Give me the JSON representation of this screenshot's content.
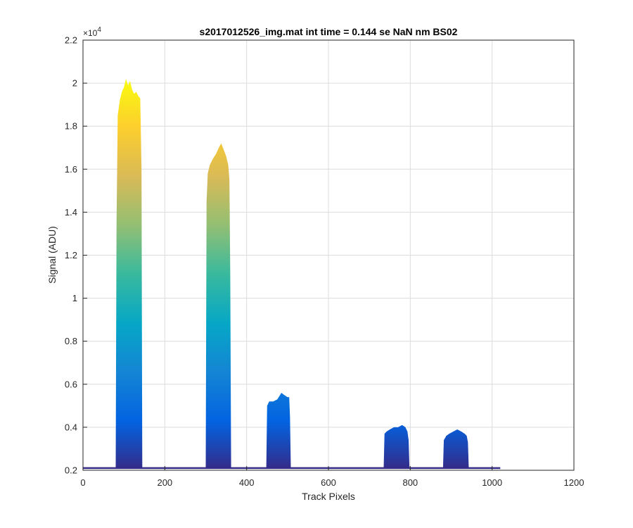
{
  "chart_data": {
    "type": "area",
    "title": "s2017012526_img.mat int time = 0.144 se  NaN nm BS02",
    "xlabel": "Track Pixels",
    "ylabel": "Signal (ADU)",
    "xlim": [
      0,
      1200
    ],
    "ylim": [
      0.2,
      2.2
    ],
    "y_exponent_label": "×10",
    "y_exponent_power": "4",
    "x_ticks": [
      {
        "value": 0,
        "label": "0"
      },
      {
        "value": 200,
        "label": "200"
      },
      {
        "value": 400,
        "label": "400"
      },
      {
        "value": 600,
        "label": "600"
      },
      {
        "value": 800,
        "label": "800"
      },
      {
        "value": 1000,
        "label": "1000"
      },
      {
        "value": 1200,
        "label": "1200"
      }
    ],
    "y_ticks": [
      {
        "value": 0.2,
        "label": "0.2"
      },
      {
        "value": 0.4,
        "label": "0.4"
      },
      {
        "value": 0.6,
        "label": "0.6"
      },
      {
        "value": 0.8,
        "label": "0.8"
      },
      {
        "value": 1.0,
        "label": "1"
      },
      {
        "value": 1.2,
        "label": "1.2"
      },
      {
        "value": 1.4,
        "label": "1.4"
      },
      {
        "value": 1.6,
        "label": "1.6"
      },
      {
        "value": 1.8,
        "label": "1.8"
      },
      {
        "value": 2.0,
        "label": "2"
      },
      {
        "value": 2.2,
        "label": "2.2"
      }
    ],
    "grid": true,
    "baseline": 0.21,
    "x_data_range": [
      0,
      1020
    ],
    "colormap": [
      "#352a87",
      "#0363e1",
      "#1485d4",
      "#06a7c6",
      "#38b99e",
      "#92bf73",
      "#d9ba56",
      "#fcce2e",
      "#f9fb0e"
    ],
    "peaks": [
      {
        "x_start": 80,
        "x_end": 145,
        "peak": 2.02,
        "points": [
          [
            80,
            0.21
          ],
          [
            82,
            1.35
          ],
          [
            85,
            1.85
          ],
          [
            90,
            1.92
          ],
          [
            95,
            1.96
          ],
          [
            100,
            1.98
          ],
          [
            105,
            2.02
          ],
          [
            110,
            1.99
          ],
          [
            115,
            2.01
          ],
          [
            120,
            1.97
          ],
          [
            125,
            1.95
          ],
          [
            130,
            1.96
          ],
          [
            135,
            1.94
          ],
          [
            140,
            1.93
          ],
          [
            143,
            1.6
          ],
          [
            145,
            0.21
          ]
        ]
      },
      {
        "x_start": 300,
        "x_end": 362,
        "peak": 1.72,
        "points": [
          [
            300,
            0.21
          ],
          [
            302,
            1.45
          ],
          [
            305,
            1.58
          ],
          [
            310,
            1.62
          ],
          [
            318,
            1.65
          ],
          [
            325,
            1.67
          ],
          [
            332,
            1.7
          ],
          [
            338,
            1.72
          ],
          [
            344,
            1.69
          ],
          [
            350,
            1.66
          ],
          [
            355,
            1.62
          ],
          [
            358,
            1.55
          ],
          [
            360,
            1.1
          ],
          [
            362,
            0.21
          ]
        ]
      },
      {
        "x_start": 448,
        "x_end": 508,
        "peak": 0.56,
        "points": [
          [
            448,
            0.21
          ],
          [
            450,
            0.5
          ],
          [
            455,
            0.52
          ],
          [
            465,
            0.52
          ],
          [
            475,
            0.53
          ],
          [
            485,
            0.56
          ],
          [
            492,
            0.55
          ],
          [
            500,
            0.54
          ],
          [
            504,
            0.54
          ],
          [
            506,
            0.45
          ],
          [
            508,
            0.21
          ]
        ]
      },
      {
        "x_start": 735,
        "x_end": 798,
        "peak": 0.41,
        "points": [
          [
            735,
            0.21
          ],
          [
            737,
            0.37
          ],
          [
            742,
            0.38
          ],
          [
            750,
            0.39
          ],
          [
            760,
            0.4
          ],
          [
            770,
            0.4
          ],
          [
            780,
            0.41
          ],
          [
            788,
            0.4
          ],
          [
            793,
            0.38
          ],
          [
            796,
            0.34
          ],
          [
            798,
            0.21
          ]
        ]
      },
      {
        "x_start": 880,
        "x_end": 943,
        "peak": 0.39,
        "points": [
          [
            880,
            0.21
          ],
          [
            882,
            0.34
          ],
          [
            888,
            0.36
          ],
          [
            895,
            0.37
          ],
          [
            905,
            0.38
          ],
          [
            915,
            0.39
          ],
          [
            925,
            0.38
          ],
          [
            933,
            0.37
          ],
          [
            938,
            0.36
          ],
          [
            941,
            0.33
          ],
          [
            943,
            0.21
          ]
        ]
      }
    ]
  }
}
